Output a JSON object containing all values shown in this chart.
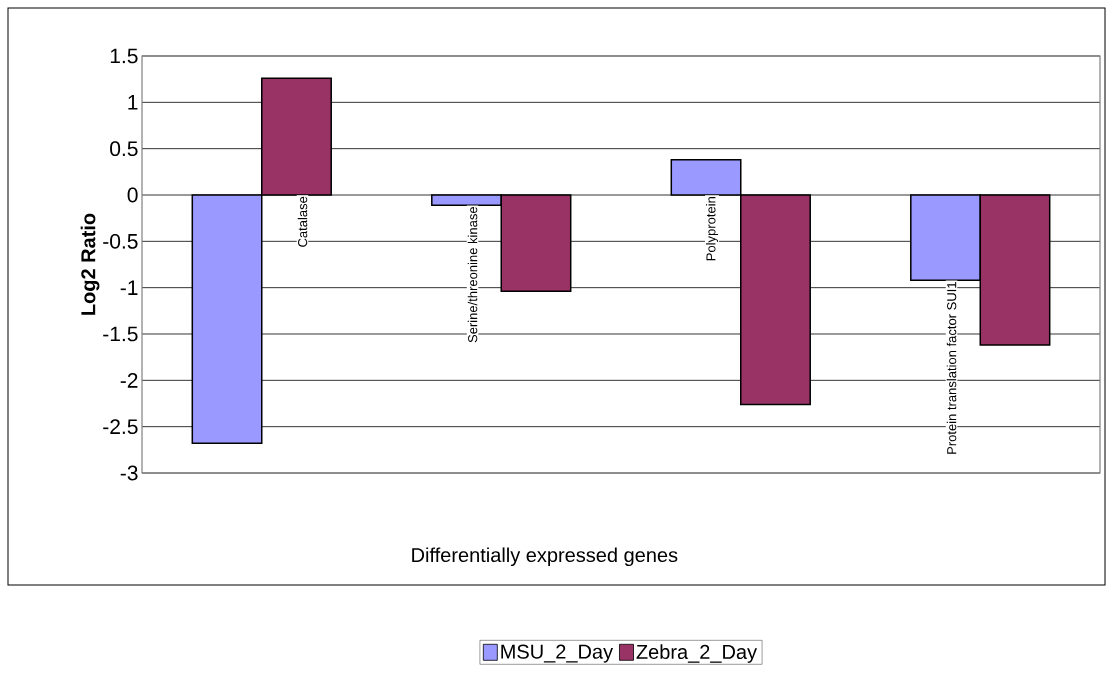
{
  "chart_data": {
    "type": "bar",
    "xlabel": "Differentially expressed genes",
    "ylabel": "Log2 Ratio",
    "categories": [
      "Catalase",
      "Serine/threonine kinase",
      "Polyprotein",
      "Protein translation factor SUI1"
    ],
    "series": [
      {
        "name": "MSU_2_Day",
        "color": "#9999ff",
        "values": [
          -2.68,
          -0.11,
          0.38,
          -0.92
        ]
      },
      {
        "name": "Zebra_2_Day",
        "color": "#993366",
        "values": [
          1.26,
          -1.04,
          -2.26,
          -1.62
        ]
      }
    ],
    "ylim": [
      -3,
      1.5
    ],
    "yticks": [
      -3,
      -2.5,
      -2,
      -1.5,
      -1,
      -0.5,
      0,
      0.5,
      1,
      1.5
    ],
    "grid": "y",
    "legend": "bottom"
  }
}
